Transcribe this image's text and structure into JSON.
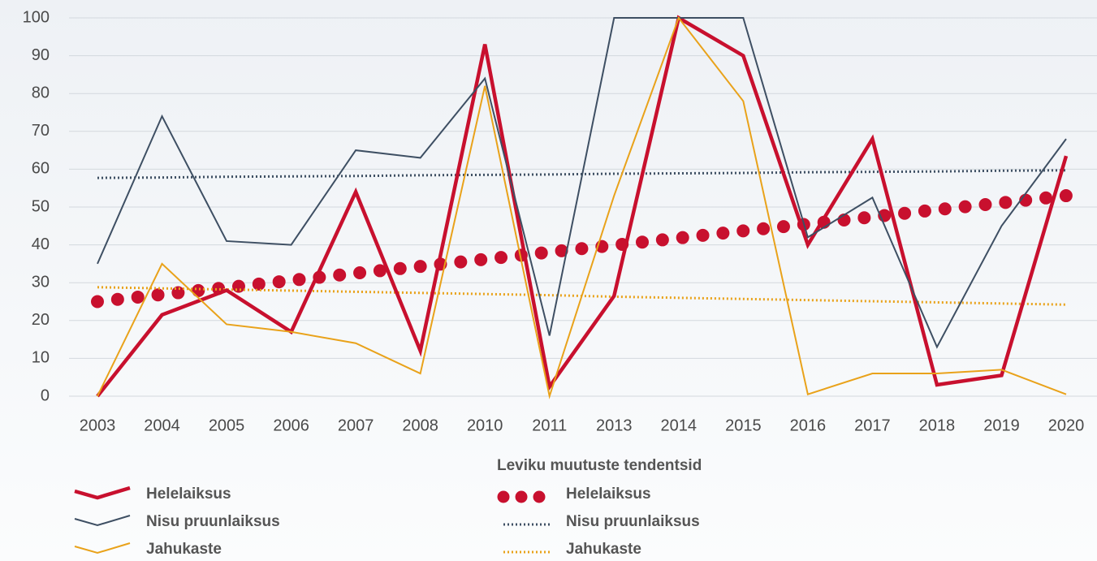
{
  "chart_data": {
    "type": "line",
    "categories": [
      "2003",
      "2004",
      "2005",
      "2006",
      "2007",
      "2008",
      "2010",
      "2011",
      "2013",
      "2014",
      "2015",
      "2016",
      "2017",
      "2018",
      "2019",
      "2020"
    ],
    "ylim": [
      0,
      100
    ],
    "yticks": [
      0,
      10,
      20,
      30,
      40,
      50,
      60,
      70,
      80,
      90,
      100
    ],
    "grid": true,
    "series": [
      {
        "name": "Helelaiksus",
        "color": "#c8102e",
        "style": "solid",
        "width": 4.5,
        "values": [
          0,
          21.5,
          28,
          17,
          54,
          12,
          93,
          2.5,
          26.5,
          100,
          90,
          40,
          68,
          3,
          5.5,
          63.5
        ]
      },
      {
        "name": "Nisu pruunlaiksus",
        "color": "#3e4f63",
        "style": "solid",
        "width": 2,
        "values": [
          35,
          74,
          41,
          40,
          65,
          63,
          84,
          16,
          100,
          100,
          100,
          42,
          52.5,
          13,
          45,
          68
        ]
      },
      {
        "name": "Jahukaste",
        "color": "#e9a21a",
        "style": "solid",
        "width": 2,
        "values": [
          0,
          35,
          19,
          17,
          14,
          6,
          82,
          0,
          53,
          100,
          78,
          0.5,
          6,
          6,
          7,
          0.5
        ]
      }
    ],
    "trend_title": "Leviku muutuste tendentsid",
    "trend_series": [
      {
        "name": "Helelaiksus",
        "color": "#c8102e",
        "style": "dots",
        "width": 16,
        "values": [
          25,
          26.9,
          28.7,
          30.6,
          32.5,
          34.3,
          36.2,
          38.1,
          39.9,
          41.8,
          43.7,
          45.5,
          47.4,
          49.3,
          51.1,
          53
        ]
      },
      {
        "name": "Nisu pruunlaiksus",
        "color": "#3e4f63",
        "style": "dotted",
        "width": 3,
        "values": [
          57.7,
          57.8,
          58,
          58.1,
          58.2,
          58.4,
          58.5,
          58.6,
          58.8,
          58.9,
          59,
          59.2,
          59.3,
          59.4,
          59.6,
          59.7
        ]
      },
      {
        "name": "Jahukaste",
        "color": "#e9a21a",
        "style": "dotted",
        "width": 3,
        "values": [
          28.8,
          28.5,
          28.2,
          27.9,
          27.6,
          27.3,
          27,
          26.7,
          26.3,
          26,
          25.7,
          25.4,
          25.1,
          24.8,
          24.5,
          24.2
        ]
      }
    ]
  }
}
